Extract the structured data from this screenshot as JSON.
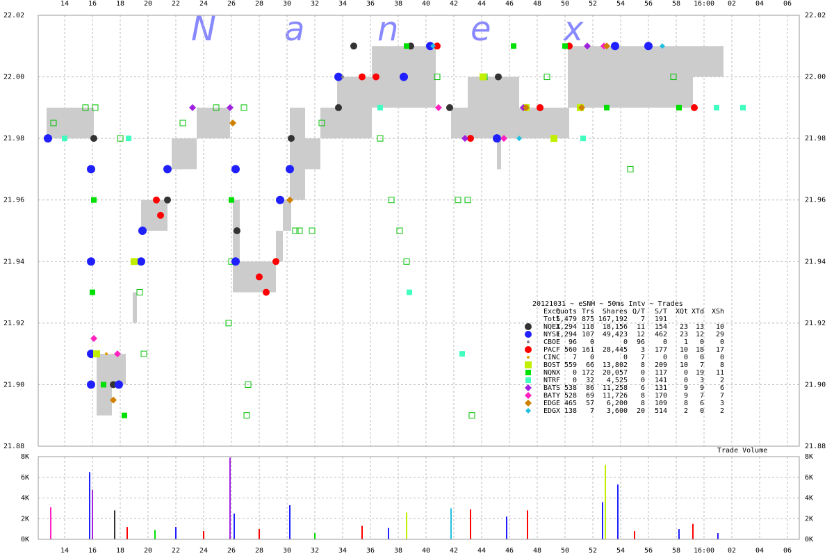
{
  "chart_data": [
    {
      "type": "scatter",
      "title": "20121031 ~ eSNH ~ 50ms Intv ~ Trades",
      "watermark": [
        "N",
        "a",
        "n",
        "e",
        "x"
      ],
      "xlim": [
        12.1,
        66.85
      ],
      "xticks": [
        14,
        16,
        18,
        20,
        22,
        24,
        26,
        28,
        30,
        32,
        34,
        36,
        38,
        40,
        42,
        44,
        46,
        48,
        50,
        52,
        54,
        56,
        58,
        {
          "value": 60,
          "label": "16:00"
        },
        {
          "value": 62,
          "label": "02"
        },
        {
          "value": 64,
          "label": "04"
        },
        {
          "value": 66,
          "label": "06"
        }
      ],
      "ylim": [
        21.88,
        22.02
      ],
      "yticks": [
        {
          "value": 21.88,
          "label": "21.88"
        },
        {
          "value": 21.9,
          "label": "21.90"
        },
        {
          "value": 21.92,
          "label": "21.92"
        },
        {
          "value": 21.94,
          "label": "21.94"
        },
        {
          "value": 21.96,
          "label": "21.96"
        },
        {
          "value": 21.98,
          "label": "21.98"
        },
        {
          "value": 22.0,
          "label": "22.00"
        },
        {
          "value": 22.02,
          "label": "22.02"
        }
      ],
      "grid": true,
      "spreads": {
        "color": "#cccccc",
        "x0": [
          12.7,
          16.3,
          17.4,
          18.9,
          19.5,
          21.7,
          23.5,
          26.1,
          26.6,
          29.2,
          29.7,
          30.2,
          31.3,
          32.4,
          33.6,
          36.1,
          41.8,
          43.0,
          45.1,
          46.7,
          50.2,
          59.2
        ],
        "x1": [
          16.1,
          17.4,
          18.4,
          19.2,
          21.4,
          23.5,
          25.9,
          26.6,
          29.2,
          29.7,
          30.3,
          31.3,
          32.4,
          33.6,
          36.1,
          40.7,
          43.0,
          46.7,
          45.4,
          50.3,
          59.2,
          61.4
        ],
        "low": [
          21.98,
          21.89,
          21.9,
          21.92,
          21.95,
          21.97,
          21.98,
          21.93,
          21.93,
          21.94,
          21.95,
          21.96,
          21.97,
          21.98,
          21.98,
          21.99,
          21.98,
          21.98,
          21.97,
          21.98,
          21.99,
          22.0
        ],
        "high": [
          21.99,
          21.91,
          21.91,
          21.93,
          21.96,
          21.98,
          21.99,
          21.96,
          21.94,
          21.95,
          21.96,
          21.99,
          21.98,
          21.99,
          22.0,
          22.01,
          21.99,
          22.0,
          21.98,
          21.99,
          22.01,
          22.01
        ]
      },
      "quotes": {
        "color": "#00c000",
        "x": [
          13.2,
          15.5,
          16.2,
          18.0,
          19.4,
          19.7,
          22.5,
          24.9,
          26.9,
          27.2,
          27.1,
          30.9,
          32.5,
          36.7,
          37.5,
          38.6,
          38.1,
          40.8,
          42.3,
          43.0,
          43.3,
          44.2,
          48.7,
          54.7,
          57.8,
          26.0,
          25.8,
          30.6,
          31.8
        ],
        "y": [
          21.985,
          21.99,
          21.99,
          21.98,
          21.93,
          21.91,
          21.985,
          21.99,
          21.99,
          21.9,
          21.89,
          21.95,
          21.985,
          21.98,
          21.96,
          21.94,
          21.95,
          22.0,
          21.96,
          21.96,
          21.89,
          22.0,
          22.0,
          21.97,
          22.0,
          21.94,
          21.92,
          21.95,
          21.95
        ]
      },
      "series": [
        {
          "name": "NQEX",
          "color": "#333333",
          "marker": "circle",
          "size": 5,
          "x": [
            16.1,
            17.5,
            21.4,
            26.4,
            30.3,
            33.7,
            34.8,
            38.9,
            41.7,
            45.2,
            48.2
          ],
          "y": [
            21.98,
            21.9,
            21.96,
            21.95,
            21.98,
            21.99,
            22.01,
            22.01,
            21.99,
            22.0,
            21.99
          ]
        },
        {
          "name": "NYSE",
          "color": "#2020ff",
          "marker": "circle",
          "size": 6,
          "x": [
            12.8,
            15.9,
            15.9,
            15.9,
            15.9,
            17.9,
            19.5,
            19.6,
            21.4,
            26.3,
            26.3,
            30.2,
            29.5,
            33.7,
            38.4,
            40.3,
            45.1,
            53.6,
            56.0
          ],
          "y": [
            21.98,
            21.97,
            21.94,
            21.91,
            21.9,
            21.9,
            21.94,
            21.95,
            21.97,
            21.97,
            21.94,
            21.97,
            21.96,
            22.0,
            22.0,
            22.01,
            21.98,
            22.01,
            22.01
          ]
        },
        {
          "name": "CBOE",
          "color": "#808080",
          "marker": "circle",
          "size": 2,
          "x": [
            34.0
          ],
          "y": [
            22.0
          ]
        },
        {
          "name": "PACF",
          "color": "#ff0000",
          "marker": "circle",
          "size": 5,
          "x": [
            20.6,
            20.9,
            28.0,
            28.5,
            29.2,
            35.4,
            36.4,
            40.8,
            43.2,
            48.2,
            59.3,
            50.3
          ],
          "y": [
            21.96,
            21.955,
            21.935,
            21.93,
            21.94,
            22.0,
            22.0,
            22.01,
            21.98,
            21.99,
            21.99,
            22.01
          ]
        },
        {
          "name": "CINC",
          "color": "#e0a000",
          "marker": "circle",
          "size": 2,
          "x": [
            17.0
          ],
          "y": [
            21.91
          ]
        },
        {
          "name": "BOST",
          "color": "#c0f000",
          "marker": "square",
          "size": 5,
          "x": [
            16.3,
            19.0,
            44.1,
            47.2,
            49.2,
            51.1
          ],
          "y": [
            21.91,
            21.94,
            22.0,
            21.99,
            21.98,
            21.99
          ]
        },
        {
          "name": "NQNX",
          "color": "#00e000",
          "marker": "square",
          "size": 4,
          "x": [
            16.0,
            26.0,
            16.1,
            18.3,
            38.6,
            46.3,
            50.0,
            53.0,
            58.2,
            16.8
          ],
          "y": [
            21.93,
            21.96,
            21.96,
            21.89,
            22.01,
            22.01,
            22.01,
            21.99,
            21.99,
            21.9
          ]
        },
        {
          "name": "NTRF",
          "color": "#40ffc0",
          "marker": "square",
          "size": 4,
          "x": [
            18.6,
            36.7,
            38.8,
            42.6,
            51.3,
            60.9,
            62.8,
            14.0
          ],
          "y": [
            21.98,
            21.99,
            21.93,
            21.91,
            21.98,
            21.99,
            21.99,
            21.98
          ]
        },
        {
          "name": "BATS",
          "color": "#a020e0",
          "marker": "diamond",
          "size": 5,
          "x": [
            23.2,
            25.9,
            42.8,
            47.0,
            51.6
          ],
          "y": [
            21.99,
            21.99,
            21.98,
            21.99,
            22.01
          ]
        },
        {
          "name": "BATY",
          "color": "#ff20c0",
          "marker": "diamond",
          "size": 5,
          "x": [
            16.1,
            17.8,
            40.9,
            45.6,
            52.8
          ],
          "y": [
            21.915,
            21.91,
            21.99,
            21.98,
            22.01
          ]
        },
        {
          "name": "EDGE",
          "color": "#d08000",
          "marker": "diamond",
          "size": 5,
          "x": [
            17.5,
            26.1,
            30.2,
            47.2,
            53.0,
            51.2
          ],
          "y": [
            21.895,
            21.985,
            21.96,
            21.99,
            22.01,
            21.99
          ]
        },
        {
          "name": "EDGX",
          "color": "#20c0e0",
          "marker": "diamond",
          "size": 4,
          "x": [
            40.5,
            46.7,
            57.0
          ],
          "y": [
            22.01,
            21.98,
            22.01
          ]
        }
      ],
      "stats": {
        "columns": [
          "Exch",
          "Quots",
          "Trs",
          "Shares",
          "Q/T",
          "S/T",
          "XQt",
          "XTd",
          "XSh"
        ],
        "total_label": "Totl",
        "total": [
          "5,479",
          "875",
          "167,192",
          "7",
          "191"
        ],
        "rows": [
          [
            "1,294",
            "118",
            "18,156",
            "11",
            "154",
            "23",
            "13",
            "10"
          ],
          [
            "1,294",
            "107",
            "49,423",
            "12",
            "462",
            "23",
            "12",
            "29"
          ],
          [
            "96",
            "0",
            "0",
            "96",
            "0",
            "1",
            "0",
            "0"
          ],
          [
            "560",
            "161",
            "28,445",
            "3",
            "177",
            "10",
            "18",
            "17"
          ],
          [
            "7",
            "0",
            "0",
            "7",
            "0",
            "0",
            "0",
            "0"
          ],
          [
            "559",
            "66",
            "13,802",
            "8",
            "209",
            "10",
            "7",
            "8"
          ],
          [
            "0",
            "172",
            "20,057",
            "0",
            "117",
            "0",
            "19",
            "11"
          ],
          [
            "0",
            "32",
            "4,525",
            "0",
            "141",
            "0",
            "3",
            "2"
          ],
          [
            "538",
            "86",
            "11,258",
            "6",
            "131",
            "9",
            "9",
            "6"
          ],
          [
            "528",
            "69",
            "11,726",
            "8",
            "170",
            "9",
            "7",
            "7"
          ],
          [
            "465",
            "57",
            "6,200",
            "8",
            "109",
            "8",
            "6",
            "3"
          ],
          [
            "138",
            "7",
            "3,600",
            "20",
            "514",
            "2",
            "0",
            "2"
          ]
        ]
      }
    },
    {
      "type": "bar",
      "title": "Trade Volume",
      "xlim": [
        12.1,
        66.85
      ],
      "ylim": [
        0,
        8000
      ],
      "yticks": [
        {
          "value": 0,
          "label": "0K"
        },
        {
          "value": 2000,
          "label": "2K"
        },
        {
          "value": 4000,
          "label": "4K"
        },
        {
          "value": 6000,
          "label": "6K"
        },
        {
          "value": 8000,
          "label": "8K"
        }
      ],
      "x": [
        13.0,
        15.8,
        16.0,
        17.6,
        18.5,
        20.5,
        22.0,
        24.0,
        25.9,
        26.2,
        28.0,
        30.2,
        32.0,
        35.4,
        37.3,
        38.6,
        41.8,
        43.2,
        45.8,
        47.3,
        52.9,
        52.7,
        53.8,
        55.0,
        58.2,
        59.2,
        61.0
      ],
      "values": [
        3100,
        6500,
        4800,
        2800,
        1200,
        900,
        1200,
        800,
        7900,
        2500,
        1000,
        3300,
        600,
        1300,
        1100,
        2600,
        3000,
        2900,
        2200,
        2800,
        7200,
        3600,
        5300,
        800,
        1000,
        1500,
        600
      ],
      "colors": [
        "#ff20c0",
        "#2020ff",
        "#a020e0",
        "#333333",
        "#ff0000",
        "#00e000",
        "#2020ff",
        "#ff0000",
        "#a020e0",
        "#2020ff",
        "#ff0000",
        "#2020ff",
        "#00e000",
        "#ff0000",
        "#2020ff",
        "#c0f000",
        "#20c0e0",
        "#ff0000",
        "#2020ff",
        "#ff0000",
        "#c0f000",
        "#2020ff",
        "#2020ff",
        "#ff0000",
        "#2020ff",
        "#ff0000",
        "#2020ff"
      ]
    }
  ]
}
